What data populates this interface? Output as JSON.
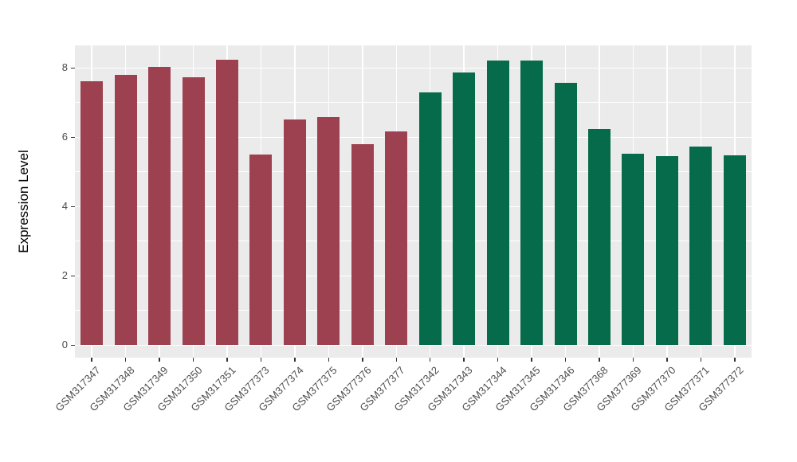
{
  "chart_data": {
    "type": "bar",
    "title": "",
    "xlabel": "",
    "ylabel": "Expression Level",
    "ylim": [
      0,
      8.24
    ],
    "y_axis_range_expanded": [
      -0.36,
      8.65
    ],
    "yticks": [
      0,
      2,
      4,
      6,
      8
    ],
    "yticks_minor": [
      1,
      3,
      5,
      7
    ],
    "grid": "on",
    "legend_position": "none",
    "categories": [
      "GSM317347",
      "GSM317348",
      "GSM317349",
      "GSM317350",
      "GSM317351",
      "GSM377373",
      "GSM377374",
      "GSM377375",
      "GSM377376",
      "GSM377377",
      "GSM317342",
      "GSM317343",
      "GSM317344",
      "GSM317345",
      "GSM317346",
      "GSM377368",
      "GSM377369",
      "GSM377370",
      "GSM377371",
      "GSM377372"
    ],
    "values": [
      7.62,
      7.79,
      8.02,
      7.74,
      8.24,
      5.49,
      6.51,
      6.57,
      5.8,
      6.17,
      7.29,
      7.87,
      8.21,
      8.21,
      7.56,
      6.24,
      5.52,
      5.46,
      5.72,
      5.47
    ],
    "bar_colors": [
      "#9D4151",
      "#9D4151",
      "#9D4151",
      "#9D4151",
      "#9D4151",
      "#9D4151",
      "#9D4151",
      "#9D4151",
      "#9D4151",
      "#9D4151",
      "#066B4A",
      "#066B4A",
      "#066B4A",
      "#066B4A",
      "#066B4A",
      "#066B4A",
      "#066B4A",
      "#066B4A",
      "#066B4A",
      "#066B4A"
    ],
    "group_colors": {
      "group_1_red": "#9D4151",
      "group_2_green": "#066B4A"
    },
    "panel_background": "#EBEBEB",
    "gridline_color": "#FFFFFF",
    "axis_text_color": "#4D4D4D",
    "tick_mark_color": "#333333"
  }
}
